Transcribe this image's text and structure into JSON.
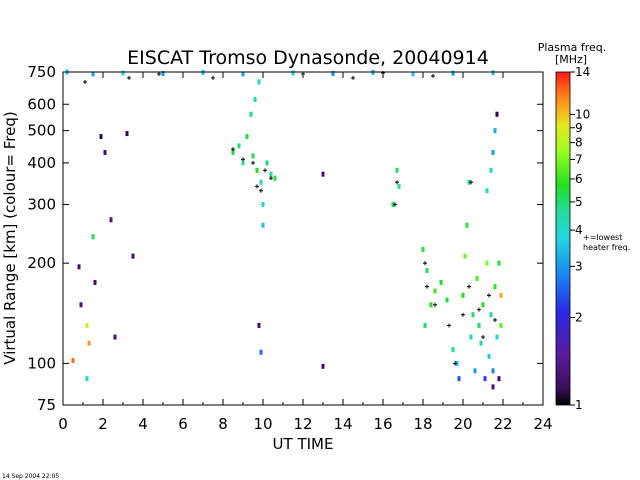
{
  "chart_data": {
    "type": "scatter",
    "title": "EISCAT Tromso Dynasonde,  20040914",
    "xlabel": "UT TIME",
    "ylabel": "Virtual Range [km]   (colour= Freq)",
    "x_ticks": [
      0,
      2,
      4,
      6,
      8,
      10,
      12,
      14,
      16,
      18,
      20,
      22,
      24
    ],
    "xlim": [
      0,
      24
    ],
    "y_scale": "log",
    "y_ticks": [
      75,
      100,
      200,
      300,
      400,
      500,
      600,
      750
    ],
    "ylim": [
      75,
      750
    ],
    "colorbar": {
      "title_line1": "Plasma freq.",
      "title_line2": "[MHz]",
      "scale": "log",
      "range": [
        1,
        14
      ],
      "ticks": [
        1,
        2,
        3,
        4,
        5,
        6,
        7,
        8,
        9,
        10,
        14
      ],
      "marker_note_line1": "+=lowest",
      "marker_note_line2": "heater freq."
    },
    "timestamp": "14 Sep 2004 22:05",
    "series": [
      {
        "points": [
          {
            "x": 0.2,
            "y": 750,
            "f": 3.5
          },
          {
            "x": 1.5,
            "y": 740,
            "f": 3.2
          },
          {
            "x": 3.0,
            "y": 745,
            "f": 3.8
          },
          {
            "x": 5.0,
            "y": 742,
            "f": 3.0
          },
          {
            "x": 7.0,
            "y": 748,
            "f": 3.4
          },
          {
            "x": 9.0,
            "y": 740,
            "f": 3.1
          },
          {
            "x": 11.5,
            "y": 745,
            "f": 3.6
          },
          {
            "x": 13.5,
            "y": 742,
            "f": 3.0
          },
          {
            "x": 15.5,
            "y": 748,
            "f": 3.3
          },
          {
            "x": 17.5,
            "y": 740,
            "f": 3.5
          },
          {
            "x": 19.5,
            "y": 744,
            "f": 3.1
          },
          {
            "x": 21.5,
            "y": 746,
            "f": 3.4
          },
          {
            "x": 0.8,
            "y": 195,
            "f": 1.2
          },
          {
            "x": 0.9,
            "y": 150,
            "f": 1.3
          },
          {
            "x": 1.2,
            "y": 130,
            "f": 8.5
          },
          {
            "x": 1.3,
            "y": 115,
            "f": 11.0
          },
          {
            "x": 1.5,
            "y": 240,
            "f": 5.2
          },
          {
            "x": 1.6,
            "y": 175,
            "f": 1.2
          },
          {
            "x": 1.9,
            "y": 480,
            "f": 1.1
          },
          {
            "x": 2.1,
            "y": 430,
            "f": 1.2
          },
          {
            "x": 2.4,
            "y": 270,
            "f": 1.3
          },
          {
            "x": 2.6,
            "y": 120,
            "f": 1.2
          },
          {
            "x": 3.2,
            "y": 490,
            "f": 1.1
          },
          {
            "x": 3.5,
            "y": 210,
            "f": 1.2
          },
          {
            "x": 0.5,
            "y": 102,
            "f": 12.0
          },
          {
            "x": 1.2,
            "y": 90,
            "f": 4.0
          },
          {
            "x": 8.5,
            "y": 430,
            "f": 5.5
          },
          {
            "x": 8.8,
            "y": 450,
            "f": 5.0
          },
          {
            "x": 9.0,
            "y": 400,
            "f": 4.5
          },
          {
            "x": 9.2,
            "y": 480,
            "f": 5.2
          },
          {
            "x": 9.4,
            "y": 560,
            "f": 4.8
          },
          {
            "x": 9.5,
            "y": 420,
            "f": 5.4
          },
          {
            "x": 9.6,
            "y": 620,
            "f": 4.6
          },
          {
            "x": 9.7,
            "y": 380,
            "f": 5.8
          },
          {
            "x": 9.8,
            "y": 700,
            "f": 4.4
          },
          {
            "x": 9.9,
            "y": 350,
            "f": 4.2
          },
          {
            "x": 10.0,
            "y": 300,
            "f": 3.8
          },
          {
            "x": 10.0,
            "y": 260,
            "f": 3.4
          },
          {
            "x": 10.2,
            "y": 400,
            "f": 5.0
          },
          {
            "x": 10.4,
            "y": 370,
            "f": 4.6
          },
          {
            "x": 10.6,
            "y": 360,
            "f": 5.2
          },
          {
            "x": 9.9,
            "y": 108,
            "f": 2.6
          },
          {
            "x": 9.8,
            "y": 130,
            "f": 1.2
          },
          {
            "x": 13.0,
            "y": 370,
            "f": 1.2
          },
          {
            "x": 13.0,
            "y": 98,
            "f": 1.2
          },
          {
            "x": 16.7,
            "y": 380,
            "f": 5.0
          },
          {
            "x": 16.8,
            "y": 340,
            "f": 4.6
          },
          {
            "x": 16.5,
            "y": 300,
            "f": 5.2
          },
          {
            "x": 18.0,
            "y": 220,
            "f": 5.4
          },
          {
            "x": 18.2,
            "y": 190,
            "f": 5.0
          },
          {
            "x": 18.4,
            "y": 150,
            "f": 5.8
          },
          {
            "x": 18.1,
            "y": 130,
            "f": 5.2
          },
          {
            "x": 18.6,
            "y": 165,
            "f": 6.2
          },
          {
            "x": 18.9,
            "y": 175,
            "f": 5.6
          },
          {
            "x": 19.2,
            "y": 155,
            "f": 5.4
          },
          {
            "x": 19.5,
            "y": 110,
            "f": 4.8
          },
          {
            "x": 19.7,
            "y": 100,
            "f": 3.4
          },
          {
            "x": 19.8,
            "y": 90,
            "f": 2.4
          },
          {
            "x": 20.0,
            "y": 160,
            "f": 5.8
          },
          {
            "x": 20.1,
            "y": 210,
            "f": 6.8
          },
          {
            "x": 20.2,
            "y": 260,
            "f": 5.4
          },
          {
            "x": 20.3,
            "y": 350,
            "f": 4.8
          },
          {
            "x": 20.4,
            "y": 120,
            "f": 4.2
          },
          {
            "x": 20.5,
            "y": 140,
            "f": 5.0
          },
          {
            "x": 20.6,
            "y": 95,
            "f": 3.0
          },
          {
            "x": 20.7,
            "y": 180,
            "f": 6.4
          },
          {
            "x": 20.8,
            "y": 130,
            "f": 5.2
          },
          {
            "x": 20.9,
            "y": 115,
            "f": 4.4
          },
          {
            "x": 21.0,
            "y": 150,
            "f": 5.8
          },
          {
            "x": 21.1,
            "y": 90,
            "f": 2.2
          },
          {
            "x": 21.2,
            "y": 200,
            "f": 7.0
          },
          {
            "x": 21.3,
            "y": 105,
            "f": 3.6
          },
          {
            "x": 21.4,
            "y": 140,
            "f": 4.8
          },
          {
            "x": 21.5,
            "y": 95,
            "f": 2.8
          },
          {
            "x": 21.6,
            "y": 170,
            "f": 6.0
          },
          {
            "x": 21.7,
            "y": 120,
            "f": 4.0
          },
          {
            "x": 21.8,
            "y": 200,
            "f": 5.4
          },
          {
            "x": 21.9,
            "y": 130,
            "f": 6.6
          },
          {
            "x": 21.9,
            "y": 160,
            "f": 10.5
          },
          {
            "x": 21.6,
            "y": 500,
            "f": 3.2
          },
          {
            "x": 21.5,
            "y": 430,
            "f": 3.0
          },
          {
            "x": 21.4,
            "y": 380,
            "f": 4.2
          },
          {
            "x": 21.2,
            "y": 330,
            "f": 4.6
          },
          {
            "x": 21.7,
            "y": 560,
            "f": 1.1
          },
          {
            "x": 21.8,
            "y": 90,
            "f": 1.2
          },
          {
            "x": 21.5,
            "y": 85,
            "f": 1.3
          }
        ]
      }
    ],
    "heater_markers": [
      {
        "x": 8.5,
        "y": 440
      },
      {
        "x": 9.0,
        "y": 410
      },
      {
        "x": 9.5,
        "y": 400
      },
      {
        "x": 9.7,
        "y": 340
      },
      {
        "x": 9.9,
        "y": 330
      },
      {
        "x": 10.1,
        "y": 380
      },
      {
        "x": 10.4,
        "y": 360
      },
      {
        "x": 1.1,
        "y": 700
      },
      {
        "x": 3.3,
        "y": 720
      },
      {
        "x": 4.8,
        "y": 740
      },
      {
        "x": 7.5,
        "y": 720
      },
      {
        "x": 12.0,
        "y": 740
      },
      {
        "x": 14.5,
        "y": 720
      },
      {
        "x": 16.0,
        "y": 745
      },
      {
        "x": 18.5,
        "y": 730
      },
      {
        "x": 16.7,
        "y": 350
      },
      {
        "x": 16.6,
        "y": 300
      },
      {
        "x": 18.1,
        "y": 200
      },
      {
        "x": 18.2,
        "y": 170
      },
      {
        "x": 18.6,
        "y": 150
      },
      {
        "x": 19.3,
        "y": 130
      },
      {
        "x": 19.6,
        "y": 100
      },
      {
        "x": 20.0,
        "y": 140
      },
      {
        "x": 20.3,
        "y": 170
      },
      {
        "x": 20.4,
        "y": 350
      },
      {
        "x": 20.8,
        "y": 145
      },
      {
        "x": 21.0,
        "y": 120
      },
      {
        "x": 21.3,
        "y": 160
      },
      {
        "x": 21.6,
        "y": 135
      }
    ]
  }
}
